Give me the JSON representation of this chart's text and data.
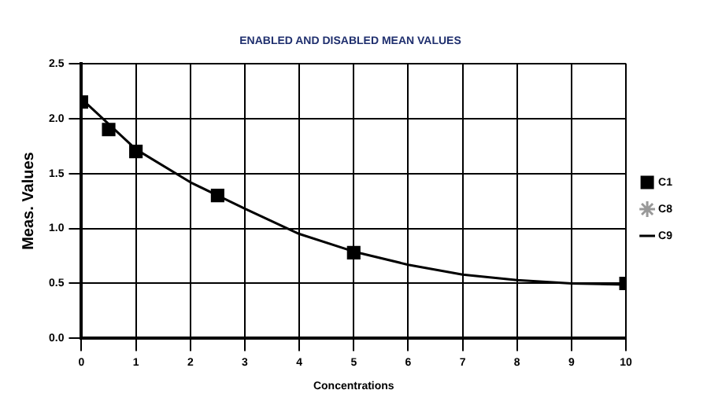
{
  "chart_data": {
    "type": "scatter",
    "title": "ENABLED AND DISABLED MEAN VALUES",
    "xlabel": "Concentrations",
    "ylabel": "Meas. Values",
    "xlim": [
      0,
      10
    ],
    "xticks": [
      0,
      1,
      2,
      3,
      4,
      5,
      6,
      7,
      8,
      9,
      10
    ],
    "ylim": [
      0,
      2.5
    ],
    "yticks": [
      {
        "value": 0,
        "label": "0.0"
      },
      {
        "value": 0.5,
        "label": "0.5"
      },
      {
        "value": 1,
        "label": "1.0"
      },
      {
        "value": 1.5,
        "label": "1.5"
      },
      {
        "value": 2,
        "label": "2.0"
      },
      {
        "value": 2.5,
        "label": "2.5"
      }
    ],
    "grid": true,
    "legend": "right",
    "series": [
      {
        "name": "C1",
        "color": "#000000",
        "marker": "square",
        "x": [
          0,
          0.5,
          1,
          2.5,
          5,
          10
        ],
        "values": [
          2.15,
          1.9,
          1.7,
          1.3,
          0.78,
          0.5
        ]
      },
      {
        "name": "C8",
        "type": "scatter",
        "color": "#999999",
        "marker": "star"
      },
      {
        "name": "C9",
        "type": "line",
        "color": "#000000",
        "marker": "none",
        "x": [
          0,
          1,
          2,
          3,
          4,
          5,
          6,
          7,
          8,
          9,
          10
        ],
        "values": [
          2.18,
          1.72,
          1.42,
          1.18,
          0.95,
          0.79,
          0.67,
          0.58,
          0.53,
          0.5,
          0.49
        ]
      }
    ]
  }
}
